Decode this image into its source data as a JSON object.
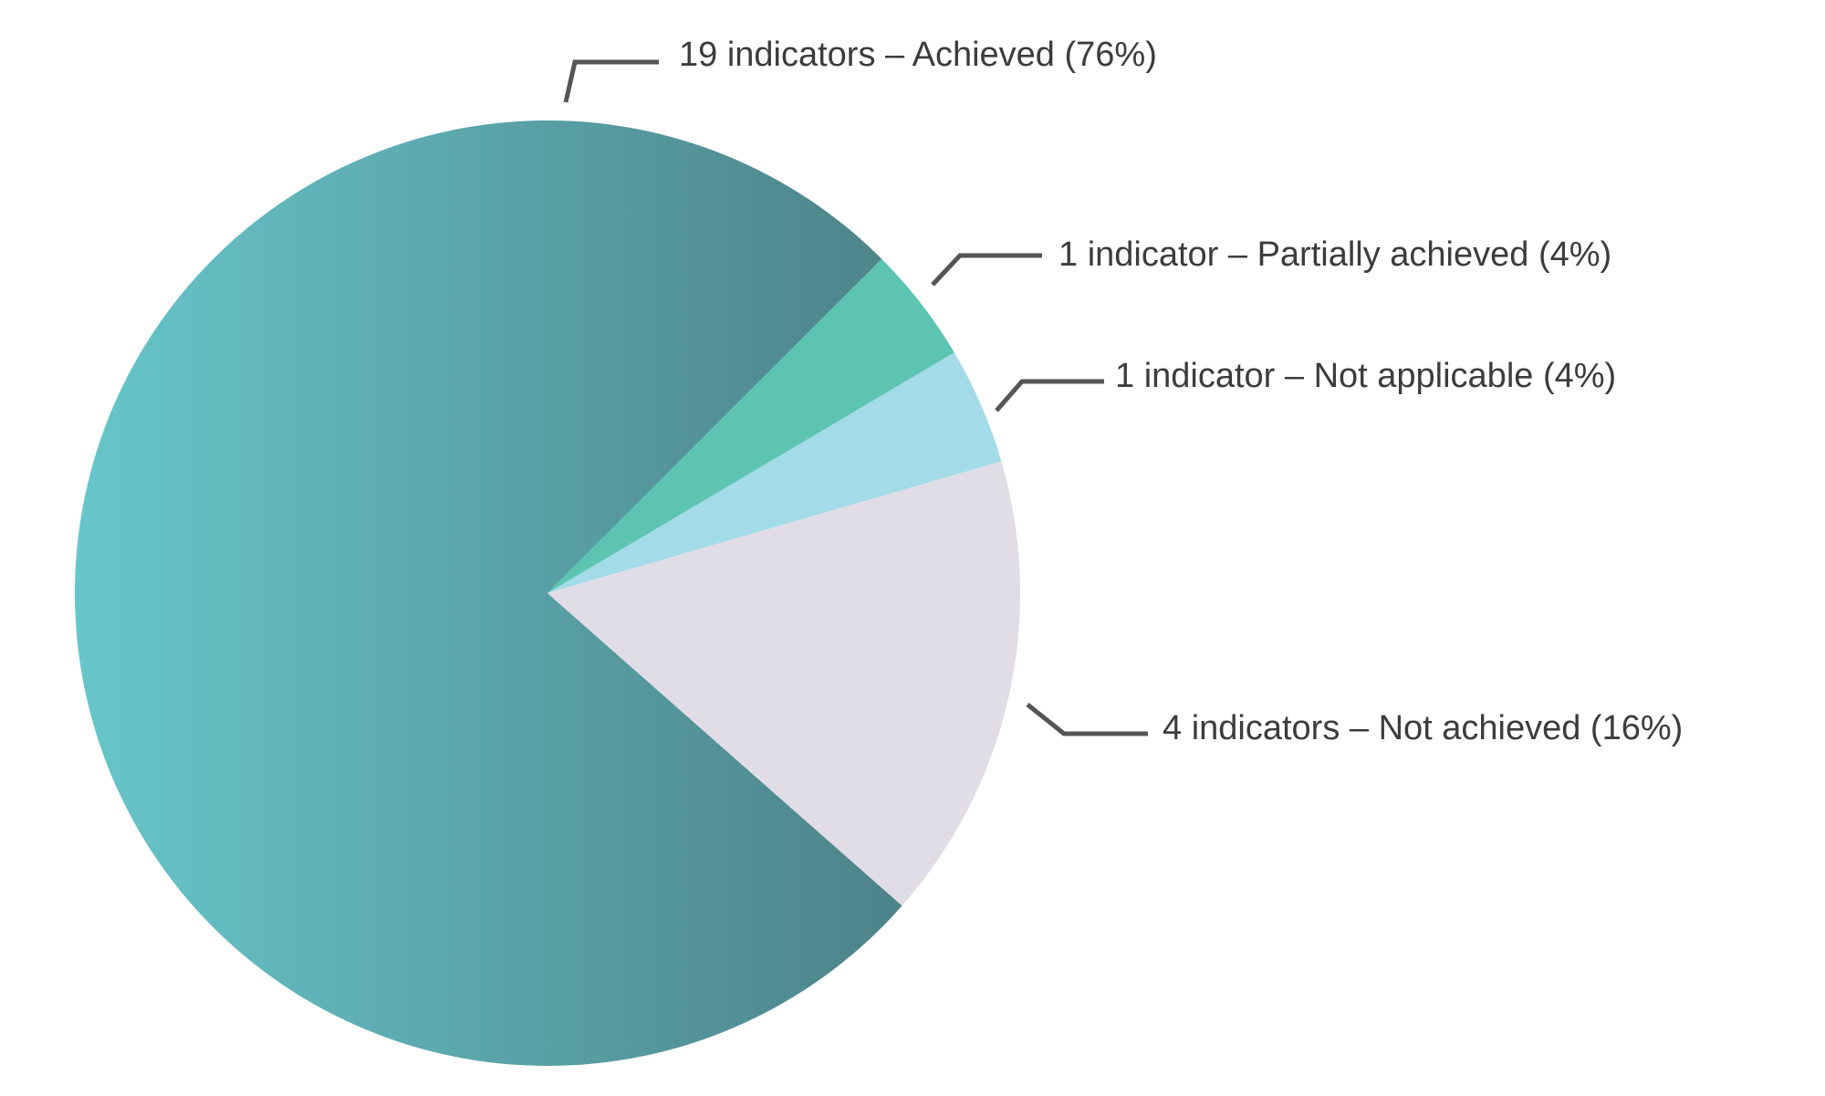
{
  "chart_data": {
    "type": "pie",
    "title": "",
    "slices": [
      {
        "label": "19 indicators – Achieved (76%)",
        "value": 19,
        "percent": 76,
        "color": "#5f9ea4"
      },
      {
        "label": "1 indicator – Partially achieved (4%)",
        "value": 1,
        "percent": 4,
        "color": "#5ec4b2"
      },
      {
        "label": "1 indicator – Not applicable (4%)",
        "value": 1,
        "percent": 4,
        "color": "#a3dbe8"
      },
      {
        "label": "4 indicators – Not achieved (16%)",
        "value": 4,
        "percent": 16,
        "color": "#e0dde6"
      }
    ],
    "start_angle_deg": 45,
    "direction": "clockwise",
    "gradient_achieved": [
      "#67c6cb",
      "#4d8489"
    ],
    "legend": "none"
  }
}
